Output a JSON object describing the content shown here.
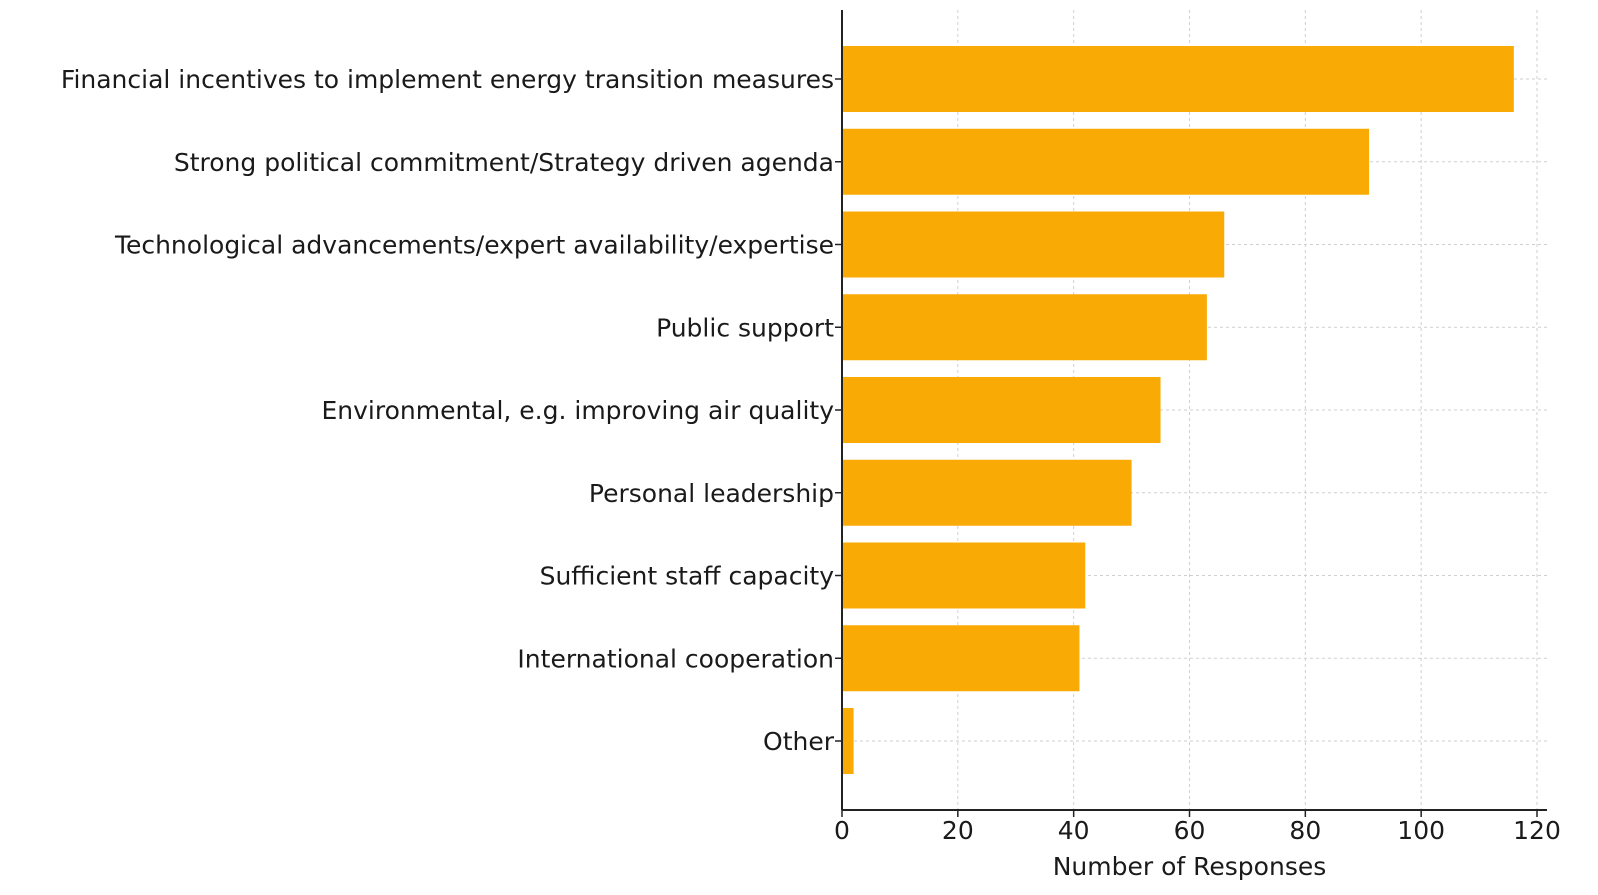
{
  "chart_data": {
    "type": "bar",
    "orientation": "horizontal",
    "categories": [
      "Financial incentives to implement energy transition measures",
      "Strong political commitment/Strategy driven agenda",
      "Technological advancements/expert availability/expertise",
      "Public support",
      "Environmental, e.g. improving air quality",
      "Personal leadership",
      "Sufficient staff capacity",
      "International cooperation",
      "Other"
    ],
    "values": [
      116,
      91,
      66,
      63,
      55,
      50,
      42,
      41,
      2
    ],
    "xlabel": "Number of Responses",
    "ylabel": "",
    "title": "",
    "xlim": [
      0,
      120
    ],
    "xticks": [
      0,
      20,
      40,
      60,
      80,
      100,
      120
    ],
    "xtick_labels": [
      "0",
      "20",
      "40",
      "60",
      "80",
      "100",
      "120"
    ],
    "grid": true,
    "bar_color": "#FAAA05"
  }
}
